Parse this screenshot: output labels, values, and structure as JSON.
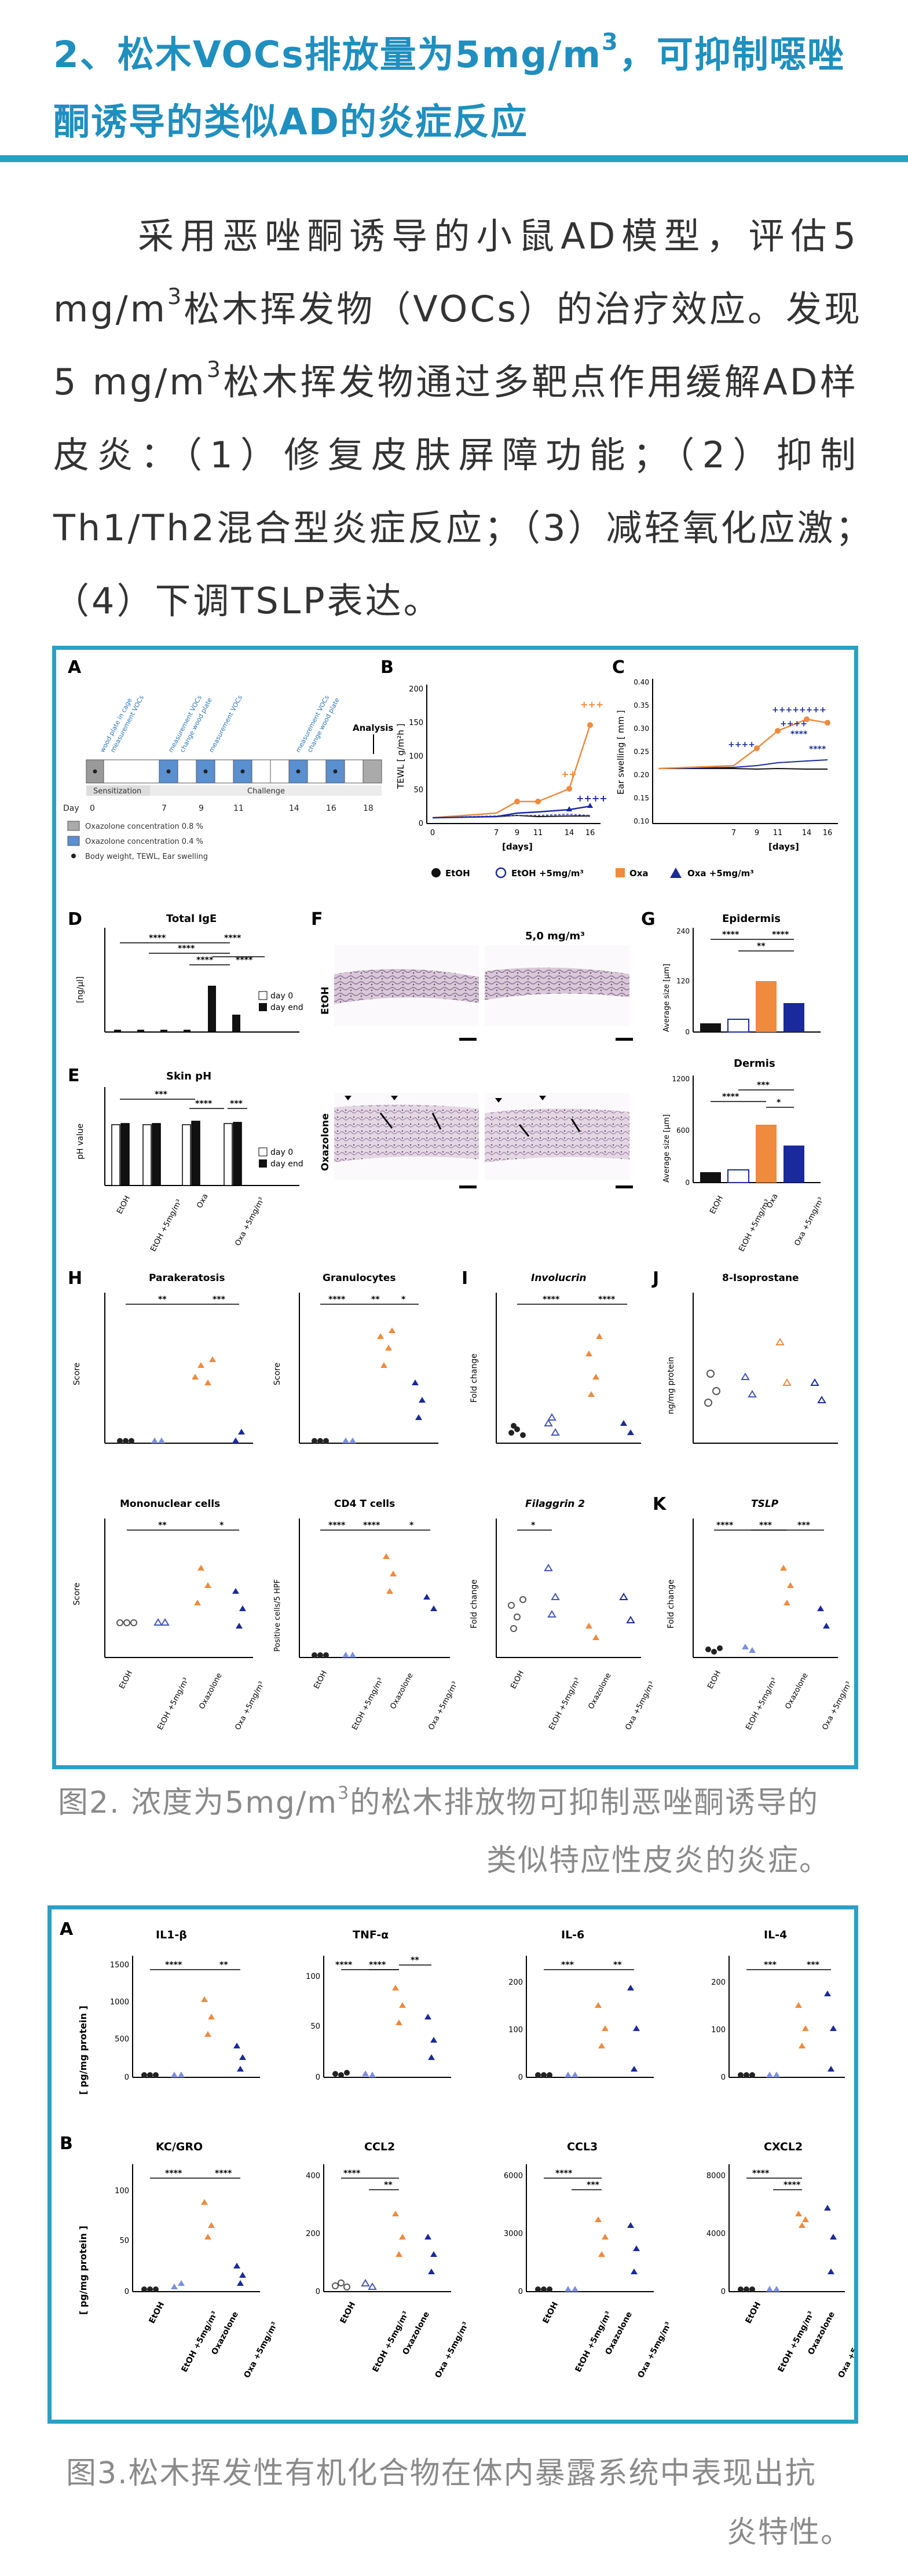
{
  "section": {
    "title_line1_pre": "2、松木VOCs排放量为5mg/m",
    "title_line1_sup": "3",
    "title_line1_post": "，可抑制噁唑",
    "title_line2": "酮诱导的类似AD的炎症反应"
  },
  "paragraph": {
    "r1": "采用恶唑酮诱导的小鼠AD模型，评估5",
    "r2a": "mg/m",
    "r2sup": "3",
    "r2b": "松木挥发物（VOCs）的治疗效应。发现",
    "r3a": "5 mg/m",
    "r3sup": "3",
    "r3b": "松木挥发物通过多靶点作用缓解AD样",
    "r4": "皮炎：（1）修复皮肤屏障功能；（2）抑制",
    "r5": "Th1/Th2混合型炎症反应；（3）减轻氧化应激；",
    "r6": "（4）下调TSLP表达。"
  },
  "figure2": {
    "panel_letters": [
      "A",
      "B",
      "C",
      "D",
      "E",
      "F",
      "G",
      "H",
      "I",
      "J",
      "K"
    ],
    "timeline": {
      "annotations": [
        "wood plate in cage",
        "measurement VOCs",
        "measurement VOCs",
        "change wood plate",
        "measurement VOCs",
        "measurement VOCs",
        "change wood plate",
        "Analysis"
      ],
      "phase1": "Sensitization",
      "phase2": "Challenge",
      "day_label": "Day",
      "days": [
        "0",
        "7",
        "9",
        "11",
        "14",
        "16",
        "18"
      ],
      "legend": [
        "Oxazolone concentration 0.8 %",
        "Oxazolone concentration 0.4 %",
        "Body weight, TEWL, Ear swelling"
      ]
    },
    "groups": [
      "EtOH",
      "EtOH +5mg/m³",
      "Oxa",
      "Oxa +5mg/m³"
    ],
    "groups_short": [
      "EtOH",
      "EtOH +5mg/m³",
      "Oxazolone",
      "Oxa +5mg/m³"
    ],
    "panelB": {
      "ylabel": "TEWL [ g/m²h ]",
      "xlabel": "[days]",
      "yticks": [
        "0",
        "50",
        "100",
        "150",
        "200"
      ],
      "xticks": [
        "0",
        "7",
        "9",
        "11",
        "14",
        "16"
      ],
      "stars": [
        "+++",
        "++",
        "++++"
      ]
    },
    "panelC": {
      "ylabel": "Ear swelling [ mm ]",
      "xlabel": "[days]",
      "yticks": [
        "0.10",
        "0.15",
        "0.20",
        "0.25",
        "0.30",
        "0.35",
        "0.40"
      ],
      "xticks": [
        "7",
        "9",
        "11",
        "14",
        "16"
      ]
    },
    "panelD": {
      "title": "Total IgE",
      "ylabel": "[ng/µl]",
      "legend": [
        "day 0",
        "day end"
      ]
    },
    "panelE": {
      "title": "Skin pH",
      "ylabel": "pH value",
      "legend": [
        "day 0",
        "day end"
      ]
    },
    "panelF": {
      "conc": "5,0 mg/m³",
      "row1": "EtOH",
      "row2": "Oxazolone"
    },
    "panelG": {
      "title1": "Epidermis",
      "title2": "Dermis",
      "ylabel": "Average size [µm]",
      "yticks1": [
        "0",
        "120",
        "240"
      ],
      "yticks2": [
        "0",
        "600",
        "1200"
      ]
    },
    "panelH": {
      "titles": [
        "Parakeratosis",
        "Granulocytes",
        "Mononuclear cells",
        "CD4 T cells"
      ],
      "ylabels": [
        "Score",
        "Score",
        "Score",
        "Positive cells/5 HPF"
      ]
    },
    "panelI": {
      "titles": [
        "Involucrin",
        "Filaggrin 2"
      ],
      "ylabel": "Fold change"
    },
    "panelJ": {
      "title": "8-Isoprostane",
      "ylabel": "ng/mg protein"
    },
    "panelK": {
      "title": "TSLP",
      "ylabel": "Fold change"
    },
    "stars": {
      "s1": "****",
      "s2": "***",
      "s3": "**",
      "s4": "*"
    }
  },
  "caption2": {
    "pre": "图2. 浓度为5mg/m",
    "sup": "3",
    "post": "的松木排放物可抑制恶唑酮诱导的",
    "line2": "类似特应性皮炎的炎症。"
  },
  "figure3": {
    "rowA_letter": "A",
    "rowB_letter": "B",
    "ylabel": "[ pg/mg protein ]",
    "titles": [
      "IL1-β",
      "TNF-α",
      "IL-6",
      "IL-4",
      "KC/GRO",
      "CCL2",
      "CCL3",
      "CXCL2"
    ],
    "yticksA": [
      [
        "0",
        "500",
        "1000",
        "1500"
      ],
      [
        "0",
        "50",
        "100"
      ],
      [
        "0",
        "100",
        "200"
      ],
      [
        "0",
        "100",
        "200"
      ]
    ],
    "yticksB": [
      [
        "0",
        "50",
        "100"
      ],
      [
        "0",
        "200",
        "400"
      ],
      [
        "0",
        "3000",
        "6000"
      ],
      [
        "0",
        "4000",
        "8000"
      ]
    ],
    "groups": [
      "EtOH",
      "EtOH +5mg/m³",
      "Oxazolone",
      "Oxa +5mg/m³"
    ]
  },
  "caption3": {
    "line1": "图3.松木挥发性有机化合物在体内暴露系统中表现出抗",
    "line2": "炎特性。"
  },
  "colors": {
    "accent": "#2aa0c6",
    "orange": "#f08a3c",
    "navy": "#1a2a9c",
    "lightblue": "#7c8fe0"
  }
}
